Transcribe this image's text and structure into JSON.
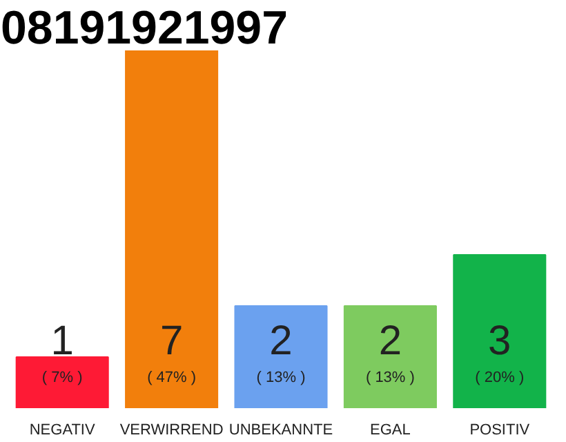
{
  "chart_data": {
    "type": "bar",
    "title": "08191921997",
    "categories": [
      "NEGATIV",
      "VERWIRREND",
      "UNBEKANNTE",
      "EGAL",
      "POSITIV"
    ],
    "values": [
      1,
      7,
      2,
      2,
      3
    ],
    "colors": [
      "#fe1a35",
      "#f27f0c",
      "#6ba1ef",
      "#7ecb5f",
      "#12b34a"
    ],
    "ylim": [
      0,
      7
    ],
    "tick_labels": "x",
    "grid": false,
    "data_labels": true,
    "annotations": [
      "( 7% )",
      "( 47% )",
      "( 13% )",
      "( 13% )",
      "( 20% )"
    ]
  }
}
